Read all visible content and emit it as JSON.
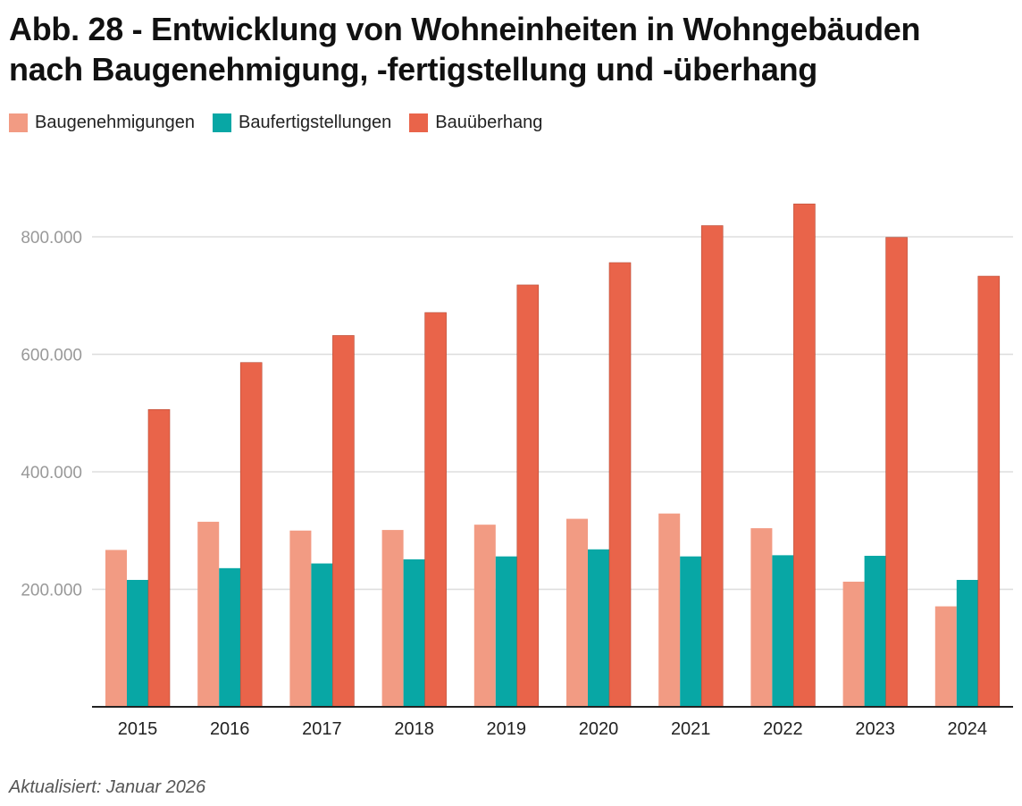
{
  "title_line1": "Abb. 28 - Entwicklung von Wohneinheiten in Wohngebäuden",
  "title_line2": "nach Baugenehmigung, -fertigstellung und -überhang",
  "footnote": "Aktualisiert: Januar 2026",
  "colors": {
    "Baugenehmigungen": "#f29b83",
    "Baufertigstellungen": "#08a7a5",
    "Bauüberhang": "#e9644a",
    "grid": "#dddddd",
    "axis": "#222222"
  },
  "chart_data": {
    "type": "bar",
    "title": "Abb. 28 - Entwicklung von Wohneinheiten in Wohngebäuden nach Baugenehmigung, -fertigstellung und -überhang",
    "xlabel": "",
    "ylabel": "",
    "categories": [
      "2015",
      "2016",
      "2017",
      "2018",
      "2019",
      "2020",
      "2021",
      "2022",
      "2023",
      "2024"
    ],
    "series": [
      {
        "name": "Baugenehmigungen",
        "values": [
          267000,
          315000,
          300000,
          301000,
          310000,
          320000,
          329000,
          304000,
          213000,
          171000
        ]
      },
      {
        "name": "Baufertigstellungen",
        "values": [
          216000,
          236000,
          244000,
          251000,
          256000,
          268000,
          256000,
          258000,
          257000,
          216000
        ]
      },
      {
        "name": "Bauüberhang",
        "values": [
          506000,
          586000,
          632000,
          671000,
          718000,
          756000,
          819000,
          856000,
          799000,
          733000
        ]
      }
    ],
    "ylim": [
      0,
      860000
    ],
    "yticks": [
      200000,
      400000,
      600000,
      800000
    ],
    "ytick_labels": [
      "200.000",
      "400.000",
      "600.000",
      "800.000"
    ],
    "grid": true,
    "legend": "top-left"
  }
}
